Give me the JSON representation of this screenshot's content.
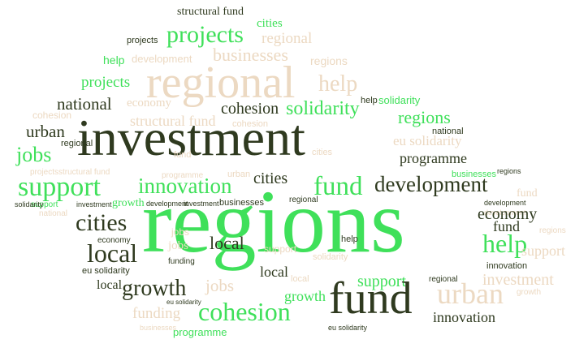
{
  "colors": {
    "dark": "#2f3a1f",
    "green": "#3fe05a",
    "beige": "#ecd9c2"
  },
  "words": [
    "structural fund",
    "cities",
    "projects",
    "projects",
    "regional",
    "help",
    "development",
    "businesses",
    "regions",
    "regional",
    "help",
    "projects",
    "national",
    "economy",
    "cohesion",
    "solidarity",
    "help",
    "solidarity",
    "cohesion",
    "structural fund",
    "regions",
    "urban",
    "investment",
    "cohesion",
    "national",
    "eu solidarity",
    "jobs",
    "regional",
    "fund",
    "cities",
    "programme",
    "projects",
    "structural fund",
    "programme",
    "urban",
    "businesses",
    "regions",
    "support",
    "innovation",
    "cities",
    "fund",
    "development",
    "support",
    "investment",
    "solidarity",
    "growth",
    "development",
    "investment",
    "businesses",
    "regional",
    "fund",
    "development",
    "national",
    "development",
    "regions",
    "economy",
    "cities",
    "jobs",
    "fund",
    "help",
    "regions",
    "economy",
    "local",
    "jobs",
    "support",
    "solidarity",
    "help",
    "support",
    "innovation",
    "eu solidarity",
    "local",
    "funding",
    "local",
    "investment",
    "local",
    "growth",
    "jobs",
    "local",
    "regional",
    "support",
    "urban",
    "growth",
    "eu solidarity",
    "growth",
    "fund",
    "innovation",
    "funding",
    "cohesion",
    "programme",
    "businesses",
    "eu solidarity"
  ]
}
